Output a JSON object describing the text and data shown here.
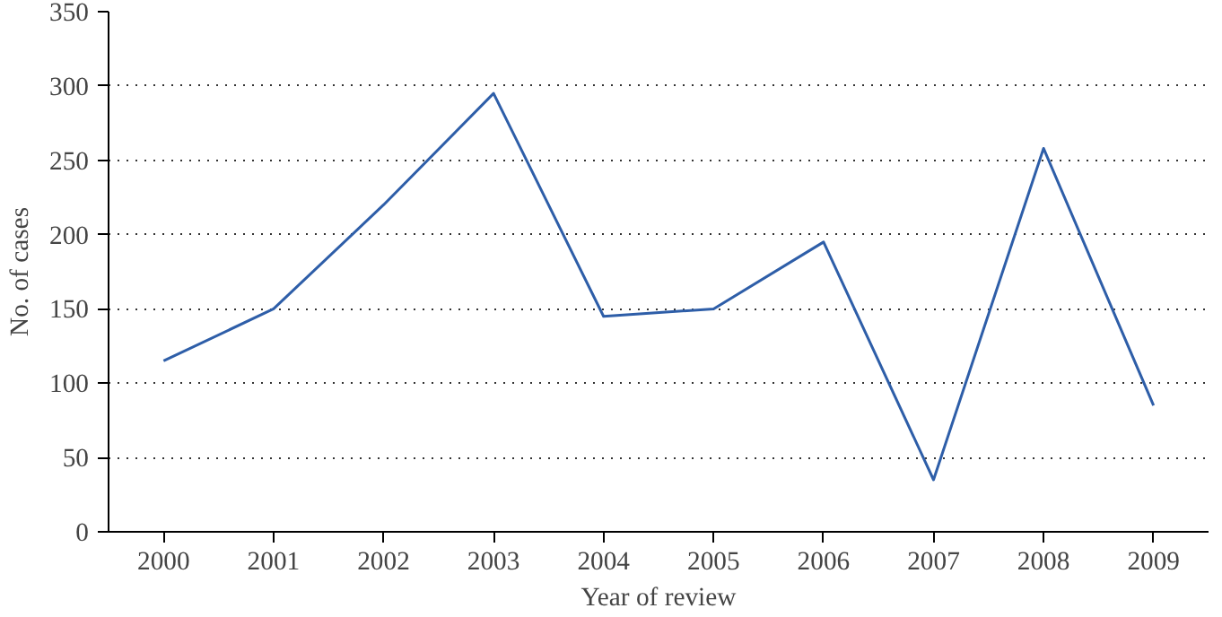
{
  "chart_data": {
    "type": "line",
    "xlabel": "Year of review",
    "ylabel": "No. of cases",
    "categories": [
      "2000",
      "2001",
      "2002",
      "2003",
      "2004",
      "2005",
      "2006",
      "2007",
      "2008",
      "2009"
    ],
    "series": [
      {
        "color": "#2e5ea8",
        "values": [
          115,
          150,
          220,
          295,
          145,
          150,
          195,
          35,
          258,
          85
        ]
      }
    ],
    "ylim": [
      0,
      350
    ],
    "yticks": [
      0,
      50,
      100,
      150,
      200,
      250,
      300,
      350
    ],
    "grid": "y",
    "marker": "none",
    "line_style": "solid"
  }
}
